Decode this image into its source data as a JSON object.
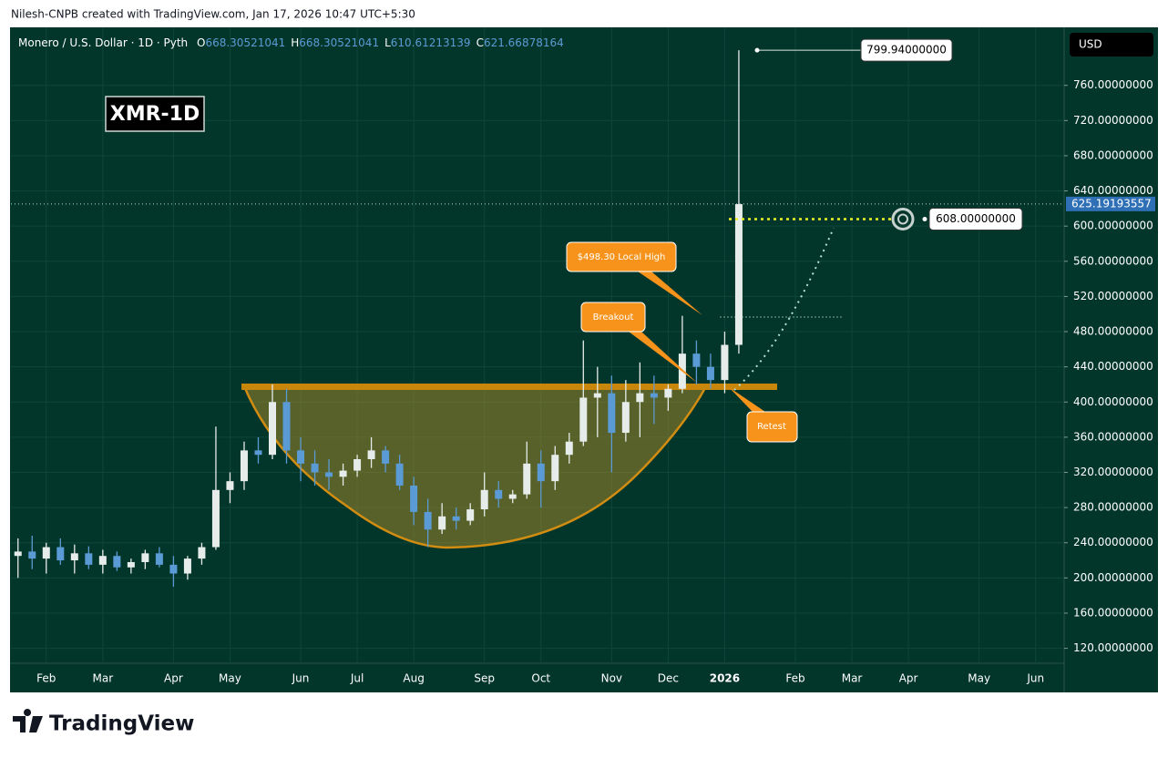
{
  "header": "Nilesh-CNPB created with TradingView.com, Jan 17, 2026 10:47 UTC+5:30",
  "footer": "TradingView",
  "chart_data": {
    "type": "candlestick",
    "title": "Monero / U.S. Dollar · 1D · Pyth",
    "ohlc_legend": [
      {
        "key": "O",
        "value": 668.30521041
      },
      {
        "key": "H",
        "value": 668.30521041
      },
      {
        "key": "L",
        "value": 610.61213139
      },
      {
        "key": "C",
        "value": 621.66878164
      }
    ],
    "currency": "USD",
    "annotations": {
      "symbol_box": "XMR-1D",
      "local_high": "$498.30 Local High",
      "breakout": "Breakout",
      "retest": "Retest"
    },
    "categories": [
      null,
      null,
      "Feb",
      null,
      null,
      null,
      "Mar",
      null,
      null,
      null,
      null,
      "Apr",
      null,
      null,
      null,
      "May",
      null,
      null,
      null,
      null,
      "Jun",
      null,
      null,
      null,
      "Jul",
      null,
      null,
      null,
      "Aug",
      null,
      null,
      null,
      null,
      "Sep",
      null,
      null,
      null,
      "Oct",
      null,
      null,
      null,
      null,
      "Nov",
      null,
      null,
      null,
      "Dec",
      null,
      null,
      null,
      "2026",
      null,
      null,
      null,
      null,
      "Feb",
      null,
      null,
      null,
      "Mar",
      null,
      null,
      null,
      "Apr",
      null,
      null,
      null,
      null,
      "May",
      null,
      null,
      null,
      "Jun",
      null
    ],
    "open": [
      225,
      230,
      222,
      235,
      220,
      228,
      215,
      225,
      212,
      218,
      228,
      215,
      205,
      222,
      235,
      300,
      310,
      345,
      340,
      400,
      345,
      330,
      320,
      315,
      322,
      335,
      345,
      330,
      305,
      275,
      255,
      270,
      265,
      278,
      300,
      290,
      295,
      330,
      310,
      340,
      355,
      405,
      410,
      365,
      400,
      410,
      405,
      415,
      455,
      440,
      425,
      465,
      null,
      null,
      null,
      null,
      null,
      null,
      null,
      null,
      null,
      null,
      null,
      null,
      null,
      null,
      null,
      null,
      null,
      null,
      null,
      null,
      null,
      null
    ],
    "high": [
      245,
      248,
      240,
      245,
      238,
      236,
      232,
      230,
      222,
      232,
      235,
      225,
      225,
      240,
      372,
      320,
      355,
      360,
      420,
      415,
      360,
      345,
      335,
      330,
      340,
      360,
      350,
      340,
      315,
      290,
      285,
      280,
      285,
      320,
      310,
      300,
      355,
      345,
      350,
      365,
      470,
      440,
      430,
      425,
      445,
      430,
      420,
      498,
      470,
      455,
      480,
      800,
      null,
      null,
      null,
      null,
      null,
      null,
      null,
      null,
      null,
      null,
      null,
      null,
      null,
      null,
      null,
      null,
      null,
      null,
      null,
      null,
      null,
      null
    ],
    "low": [
      200,
      210,
      205,
      215,
      205,
      210,
      205,
      208,
      205,
      210,
      212,
      190,
      198,
      215,
      232,
      285,
      300,
      330,
      335,
      330,
      310,
      305,
      300,
      305,
      315,
      325,
      320,
      300,
      260,
      235,
      250,
      255,
      260,
      270,
      280,
      285,
      290,
      280,
      300,
      330,
      350,
      360,
      320,
      355,
      360,
      375,
      390,
      410,
      420,
      415,
      410,
      455,
      null,
      null,
      null,
      null,
      null,
      null,
      null,
      null,
      null,
      null,
      null,
      null,
      null,
      null,
      null,
      null,
      null,
      null,
      null,
      null,
      null,
      null
    ],
    "close": [
      230,
      222,
      235,
      220,
      228,
      215,
      225,
      212,
      218,
      228,
      215,
      205,
      222,
      235,
      300,
      310,
      345,
      340,
      400,
      345,
      330,
      320,
      315,
      322,
      335,
      345,
      330,
      305,
      275,
      255,
      270,
      265,
      278,
      300,
      290,
      295,
      330,
      310,
      340,
      355,
      405,
      410,
      365,
      400,
      410,
      405,
      415,
      455,
      440,
      425,
      465,
      625,
      null,
      null,
      null,
      null,
      null,
      null,
      null,
      null,
      null,
      null,
      null,
      null,
      null,
      null,
      null,
      null,
      null,
      null,
      null,
      null,
      null,
      null
    ],
    "up_color": "#e6ece9",
    "down_color": "#5b9bd5",
    "ylim": [
      103,
      826
    ],
    "yticks": [
      {
        "value": 120,
        "label": "120.00000000"
      },
      {
        "value": 160,
        "label": "160.00000000"
      },
      {
        "value": 200,
        "label": "200.00000000"
      },
      {
        "value": 240,
        "label": "240.00000000"
      },
      {
        "value": 280,
        "label": "280.00000000"
      },
      {
        "value": 320,
        "label": "320.00000000"
      },
      {
        "value": 360,
        "label": "360.00000000"
      },
      {
        "value": 400,
        "label": "400.00000000"
      },
      {
        "value": 440,
        "label": "440.00000000"
      },
      {
        "value": 480,
        "label": "480.00000000"
      },
      {
        "value": 520,
        "label": "520.00000000"
      },
      {
        "value": 560,
        "label": "560.00000000"
      },
      {
        "value": 600,
        "label": "600.00000000"
      },
      {
        "value": 640,
        "label": "640.00000000"
      },
      {
        "value": 680,
        "label": "680.00000000"
      },
      {
        "value": 720,
        "label": "720.00000000"
      },
      {
        "value": 760,
        "label": "760.00000000"
      }
    ],
    "grid": true,
    "price_labels": [
      {
        "value": 799.94,
        "label": "799.94000000"
      },
      {
        "value": 608,
        "label": "608.00000000"
      }
    ],
    "last_price": 625.19193557
  }
}
